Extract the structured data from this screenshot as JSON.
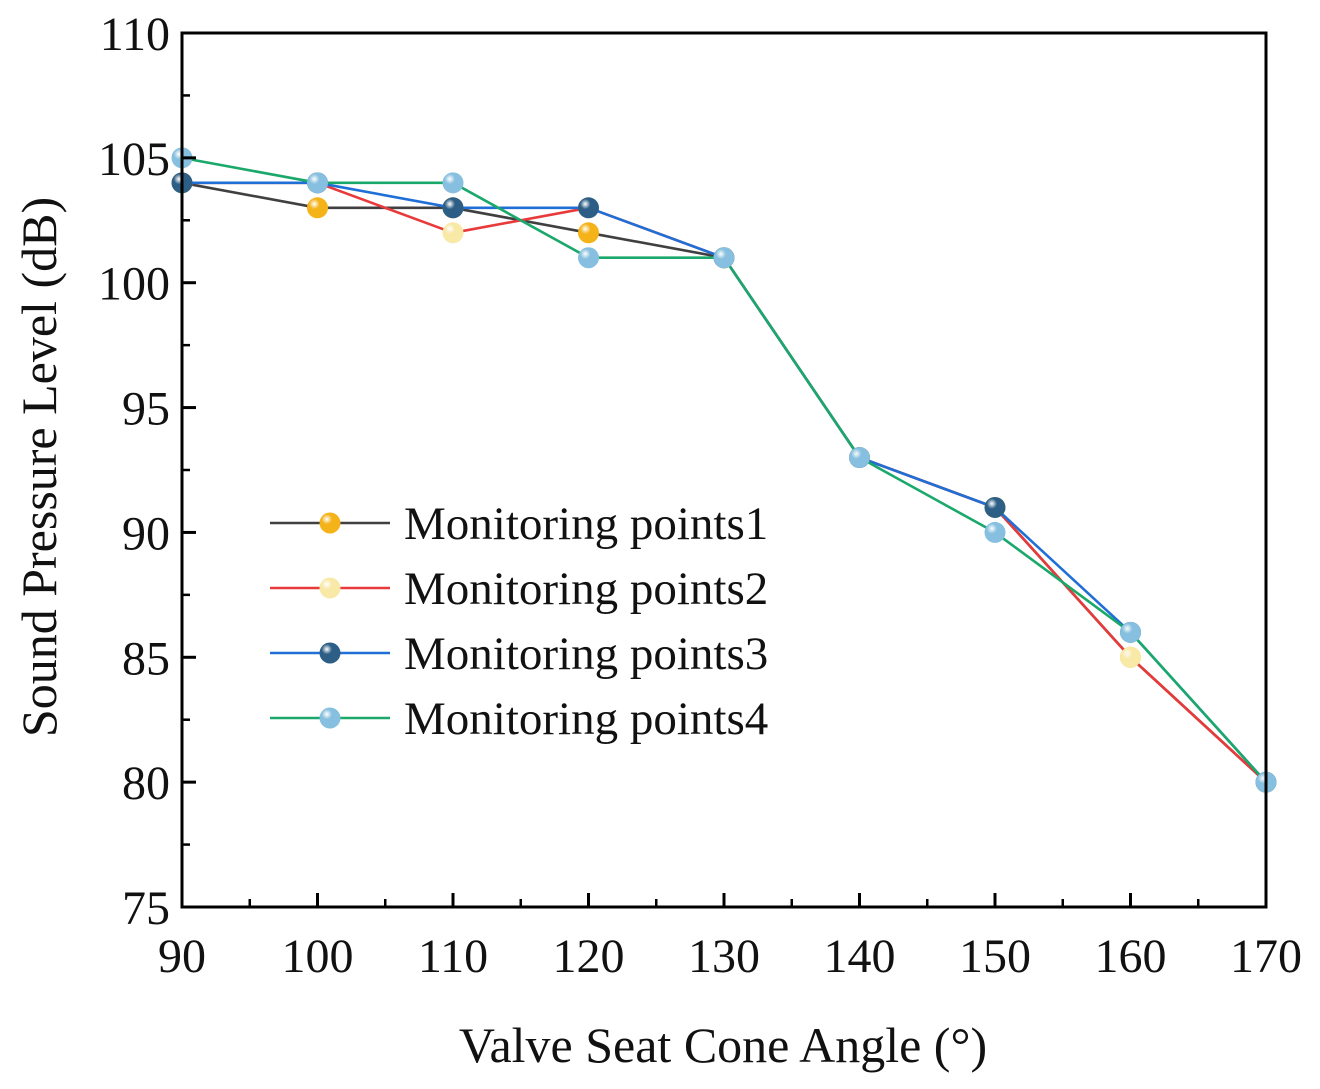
{
  "chart_data": {
    "type": "line",
    "xlabel": "Valve Seat Cone Angle (°)",
    "ylabel": "Sound Pressure Level (dB)",
    "xlim": [
      90,
      170
    ],
    "ylim": [
      75,
      110
    ],
    "x_ticks": [
      90,
      100,
      110,
      120,
      130,
      140,
      150,
      160,
      170
    ],
    "y_ticks": [
      75,
      80,
      85,
      90,
      95,
      100,
      105,
      110
    ],
    "x_tick_labels": [
      "90",
      "100",
      "110",
      "120",
      "130",
      "140",
      "150",
      "160",
      "170"
    ],
    "y_tick_labels": [
      "75",
      "80",
      "85",
      "90",
      "95",
      "100",
      "105",
      "110"
    ],
    "grid": false,
    "legend_position": "center-left",
    "x": [
      90,
      100,
      110,
      120,
      130,
      140,
      150,
      160,
      170
    ],
    "series": [
      {
        "name": "Monitoring points1",
        "values": [
          104,
          103,
          103,
          102,
          101,
          93,
          91,
          85,
          80
        ],
        "line_color": "#404040",
        "marker_color": "#f5b31a"
      },
      {
        "name": "Monitoring points2",
        "values": [
          104,
          104,
          102,
          103,
          101,
          93,
          91,
          85,
          80
        ],
        "line_color": "#e83a3a",
        "marker_color": "#f8e9a6"
      },
      {
        "name": "Monitoring points3",
        "values": [
          104,
          104,
          103,
          103,
          101,
          93,
          91,
          86,
          80
        ],
        "line_color": "#1f6fd6",
        "marker_color": "#2d5f86"
      },
      {
        "name": "Monitoring points4",
        "values": [
          105,
          104,
          104,
          101,
          101,
          93,
          90,
          86,
          80
        ],
        "line_color": "#1aa86b",
        "marker_color": "#86bfdf"
      }
    ]
  }
}
